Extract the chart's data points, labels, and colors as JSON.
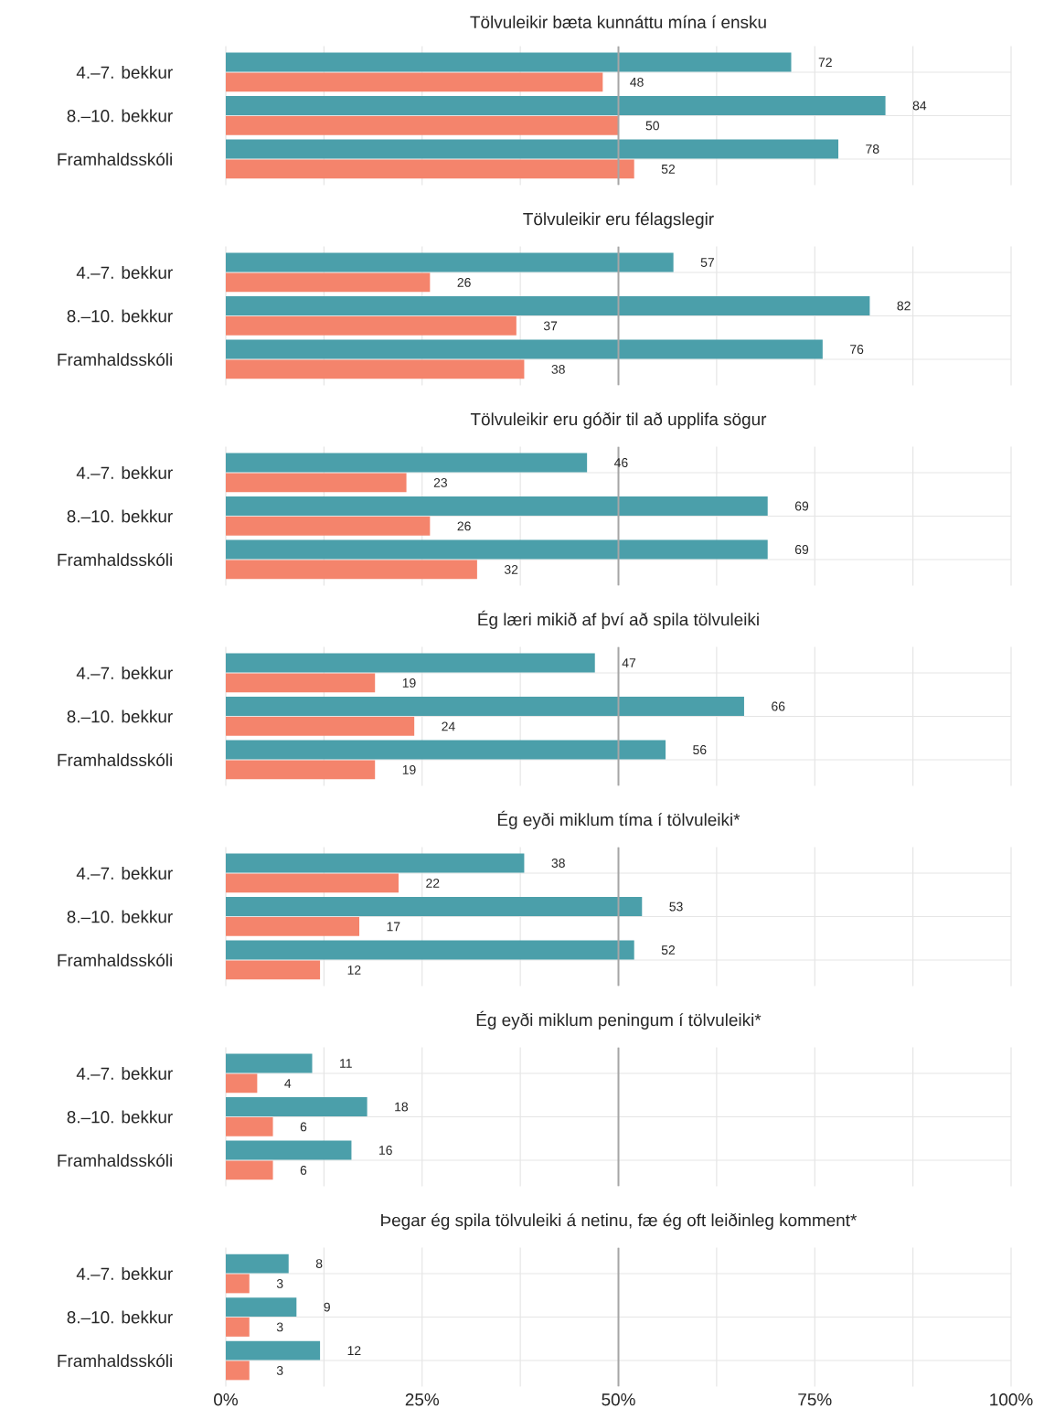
{
  "chart_data": [
    {
      "type": "bar",
      "orientation": "horizontal",
      "title": "Tölvuleikir bæta kunnáttu mína í ensku",
      "categories": [
        "4.–7. bekkur",
        "8.–10. bekkur",
        "Framhaldsskóli"
      ],
      "series": [
        {
          "color": "#4b9faa",
          "values": [
            72,
            84,
            78
          ]
        },
        {
          "color": "#f4846c",
          "values": [
            48,
            50,
            52
          ]
        }
      ],
      "xlim": [
        0,
        100
      ],
      "xticks": [
        {
          "value": 0,
          "label": null
        },
        {
          "value": 12.5,
          "label": null
        },
        {
          "value": 25,
          "label": null
        },
        {
          "value": 37.5,
          "label": null
        },
        {
          "value": 50,
          "label": null
        },
        {
          "value": 62.5,
          "label": null
        },
        {
          "value": 75,
          "label": null
        },
        {
          "value": 87.5,
          "label": null
        },
        {
          "value": 100,
          "label": null
        }
      ],
      "tick_labels": "y",
      "grid": true,
      "data_labels": true,
      "ref_lines": [
        {
          "axis": "x",
          "value": 50,
          "color": "#a6a6a6"
        }
      ]
    },
    {
      "type": "bar",
      "orientation": "horizontal",
      "title": "Tölvuleikir eru félagslegir",
      "categories": [
        "4.–7. bekkur",
        "8.–10. bekkur",
        "Framhaldsskóli"
      ],
      "series": [
        {
          "color": "#4b9faa",
          "values": [
            57,
            82,
            76
          ]
        },
        {
          "color": "#f4846c",
          "values": [
            26,
            37,
            38
          ]
        }
      ],
      "xlim": [
        0,
        100
      ],
      "xticks": [
        {
          "value": 0,
          "label": null
        },
        {
          "value": 12.5,
          "label": null
        },
        {
          "value": 25,
          "label": null
        },
        {
          "value": 37.5,
          "label": null
        },
        {
          "value": 50,
          "label": null
        },
        {
          "value": 62.5,
          "label": null
        },
        {
          "value": 75,
          "label": null
        },
        {
          "value": 87.5,
          "label": null
        },
        {
          "value": 100,
          "label": null
        }
      ],
      "tick_labels": "y",
      "grid": true,
      "data_labels": true,
      "ref_lines": [
        {
          "axis": "x",
          "value": 50,
          "color": "#a6a6a6"
        }
      ]
    },
    {
      "type": "bar",
      "orientation": "horizontal",
      "title": "Tölvuleikir eru góðir til að upplifa sögur",
      "categories": [
        "4.–7. bekkur",
        "8.–10. bekkur",
        "Framhaldsskóli"
      ],
      "series": [
        {
          "color": "#4b9faa",
          "values": [
            46,
            69,
            69
          ]
        },
        {
          "color": "#f4846c",
          "values": [
            23,
            26,
            32
          ]
        }
      ],
      "xlim": [
        0,
        100
      ],
      "xticks": [
        {
          "value": 0,
          "label": null
        },
        {
          "value": 12.5,
          "label": null
        },
        {
          "value": 25,
          "label": null
        },
        {
          "value": 37.5,
          "label": null
        },
        {
          "value": 50,
          "label": null
        },
        {
          "value": 62.5,
          "label": null
        },
        {
          "value": 75,
          "label": null
        },
        {
          "value": 87.5,
          "label": null
        },
        {
          "value": 100,
          "label": null
        }
      ],
      "tick_labels": "y",
      "grid": true,
      "data_labels": true,
      "ref_lines": [
        {
          "axis": "x",
          "value": 50,
          "color": "#a6a6a6"
        }
      ]
    },
    {
      "type": "bar",
      "orientation": "horizontal",
      "title": "Ég læri mikið af því að spila tölvuleiki",
      "categories": [
        "4.–7. bekkur",
        "8.–10. bekkur",
        "Framhaldsskóli"
      ],
      "series": [
        {
          "color": "#4b9faa",
          "values": [
            47,
            66,
            56
          ]
        },
        {
          "color": "#f4846c",
          "values": [
            19,
            24,
            19
          ]
        }
      ],
      "xlim": [
        0,
        100
      ],
      "xticks": [
        {
          "value": 0,
          "label": null
        },
        {
          "value": 12.5,
          "label": null
        },
        {
          "value": 25,
          "label": null
        },
        {
          "value": 37.5,
          "label": null
        },
        {
          "value": 50,
          "label": null
        },
        {
          "value": 62.5,
          "label": null
        },
        {
          "value": 75,
          "label": null
        },
        {
          "value": 87.5,
          "label": null
        },
        {
          "value": 100,
          "label": null
        }
      ],
      "tick_labels": "y",
      "grid": true,
      "data_labels": true,
      "ref_lines": [
        {
          "axis": "x",
          "value": 50,
          "color": "#a6a6a6"
        }
      ]
    },
    {
      "type": "bar",
      "orientation": "horizontal",
      "title": "Ég eyði miklum tíma í tölvuleiki*",
      "categories": [
        "4.–7. bekkur",
        "8.–10. bekkur",
        "Framhaldsskóli"
      ],
      "series": [
        {
          "color": "#4b9faa",
          "values": [
            38,
            53,
            52
          ]
        },
        {
          "color": "#f4846c",
          "values": [
            22,
            17,
            12
          ]
        }
      ],
      "xlim": [
        0,
        100
      ],
      "xticks": [
        {
          "value": 0,
          "label": null
        },
        {
          "value": 12.5,
          "label": null
        },
        {
          "value": 25,
          "label": null
        },
        {
          "value": 37.5,
          "label": null
        },
        {
          "value": 50,
          "label": null
        },
        {
          "value": 62.5,
          "label": null
        },
        {
          "value": 75,
          "label": null
        },
        {
          "value": 87.5,
          "label": null
        },
        {
          "value": 100,
          "label": null
        }
      ],
      "tick_labels": "y",
      "grid": true,
      "data_labels": true,
      "ref_lines": [
        {
          "axis": "x",
          "value": 50,
          "color": "#a6a6a6"
        }
      ]
    },
    {
      "type": "bar",
      "orientation": "horizontal",
      "title": "Ég eyði miklum peningum í tölvuleiki*",
      "categories": [
        "4.–7. bekkur",
        "8.–10. bekkur",
        "Framhaldsskóli"
      ],
      "series": [
        {
          "color": "#4b9faa",
          "values": [
            11,
            18,
            16
          ]
        },
        {
          "color": "#f4846c",
          "values": [
            4,
            6,
            6
          ]
        }
      ],
      "xlim": [
        0,
        100
      ],
      "xticks": [
        {
          "value": 0,
          "label": null
        },
        {
          "value": 12.5,
          "label": null
        },
        {
          "value": 25,
          "label": null
        },
        {
          "value": 37.5,
          "label": null
        },
        {
          "value": 50,
          "label": null
        },
        {
          "value": 62.5,
          "label": null
        },
        {
          "value": 75,
          "label": null
        },
        {
          "value": 87.5,
          "label": null
        },
        {
          "value": 100,
          "label": null
        }
      ],
      "tick_labels": "y",
      "grid": true,
      "data_labels": true,
      "ref_lines": [
        {
          "axis": "x",
          "value": 50,
          "color": "#a6a6a6"
        }
      ]
    },
    {
      "type": "bar",
      "orientation": "horizontal",
      "title": "Þegar ég spila tölvuleiki á netinu, fæ ég oft leiðinleg komment*",
      "categories": [
        "4.–7. bekkur",
        "8.–10. bekkur",
        "Framhaldsskóli"
      ],
      "series": [
        {
          "color": "#4b9faa",
          "values": [
            8,
            9,
            12
          ]
        },
        {
          "color": "#f4846c",
          "values": [
            3,
            3,
            3
          ]
        }
      ],
      "xlim": [
        0,
        100
      ],
      "xticks": [
        {
          "value": 0,
          "label": "0%"
        },
        {
          "value": 12.5,
          "label": null
        },
        {
          "value": 25,
          "label": "25%"
        },
        {
          "value": 37.5,
          "label": null
        },
        {
          "value": 50,
          "label": "50%"
        },
        {
          "value": 62.5,
          "label": null
        },
        {
          "value": 75,
          "label": "75%"
        },
        {
          "value": 87.5,
          "label": null
        },
        {
          "value": 100,
          "label": "100%"
        }
      ],
      "grid": true,
      "data_labels": true,
      "ref_lines": [
        {
          "axis": "x",
          "value": 50,
          "color": "#a6a6a6"
        }
      ]
    }
  ]
}
